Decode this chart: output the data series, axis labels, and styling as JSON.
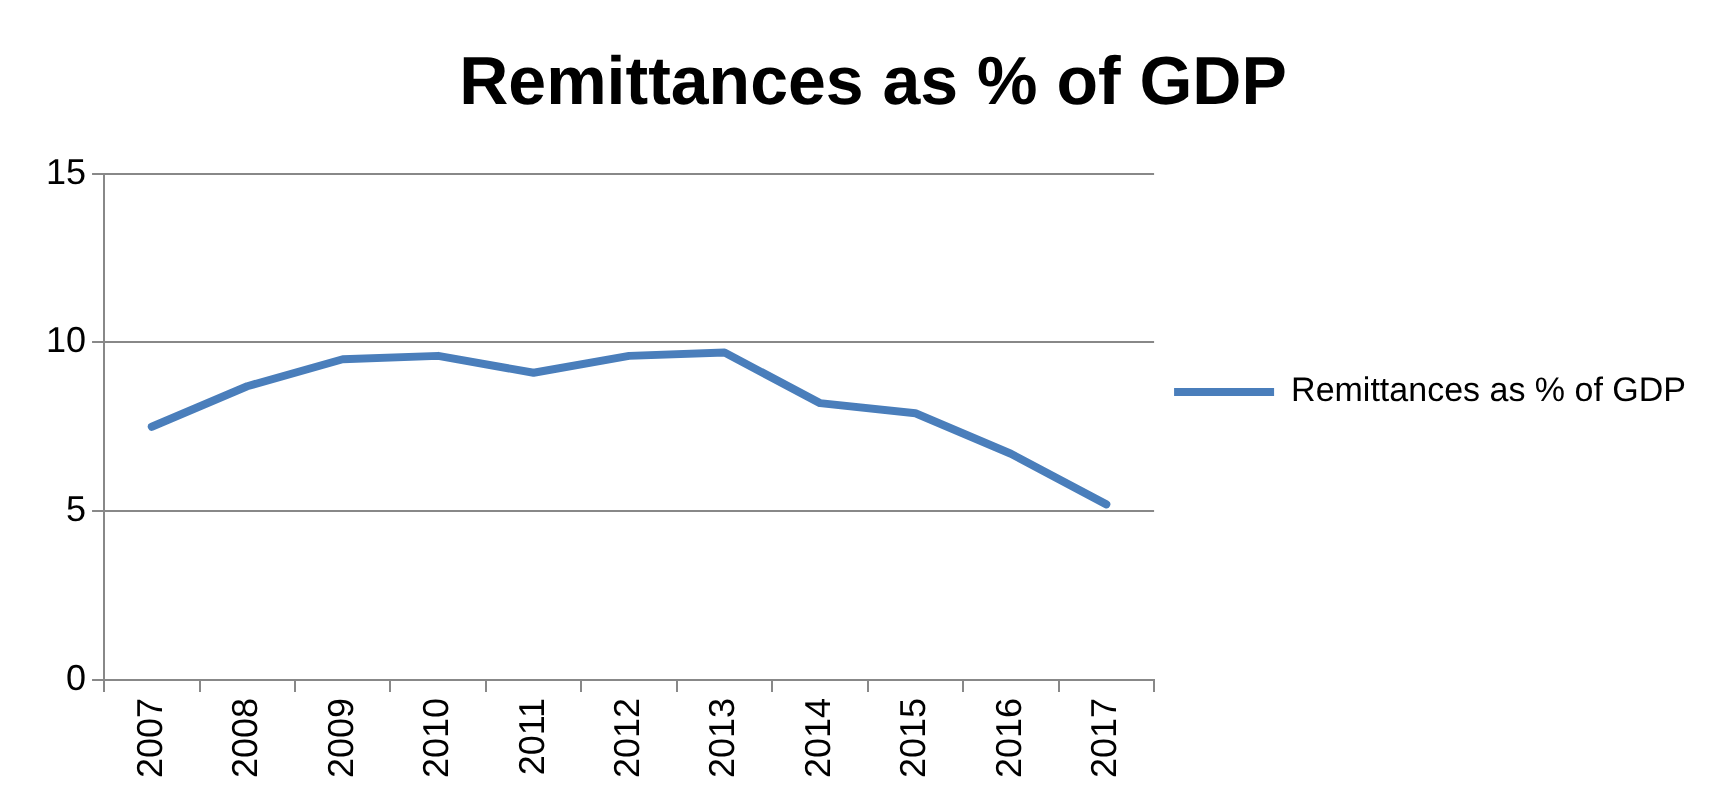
{
  "chart_data": {
    "type": "line",
    "title": "Remittances as % of GDP",
    "categories": [
      "2007",
      "2008",
      "2009",
      "2010",
      "2011",
      "2012",
      "2013",
      "2014",
      "2015",
      "2016",
      "2017"
    ],
    "series": [
      {
        "name": "Remittances as % of GDP",
        "color": "#4a7ebb",
        "values": [
          7.5,
          8.7,
          9.5,
          9.6,
          9.1,
          9.6,
          9.7,
          8.2,
          7.9,
          6.7,
          5.2
        ]
      }
    ],
    "ylim": [
      0,
      15
    ],
    "yticks": [
      0,
      5,
      10,
      15
    ],
    "grid": "y",
    "legend": "right",
    "marker": "none",
    "line_style": "solid"
  }
}
